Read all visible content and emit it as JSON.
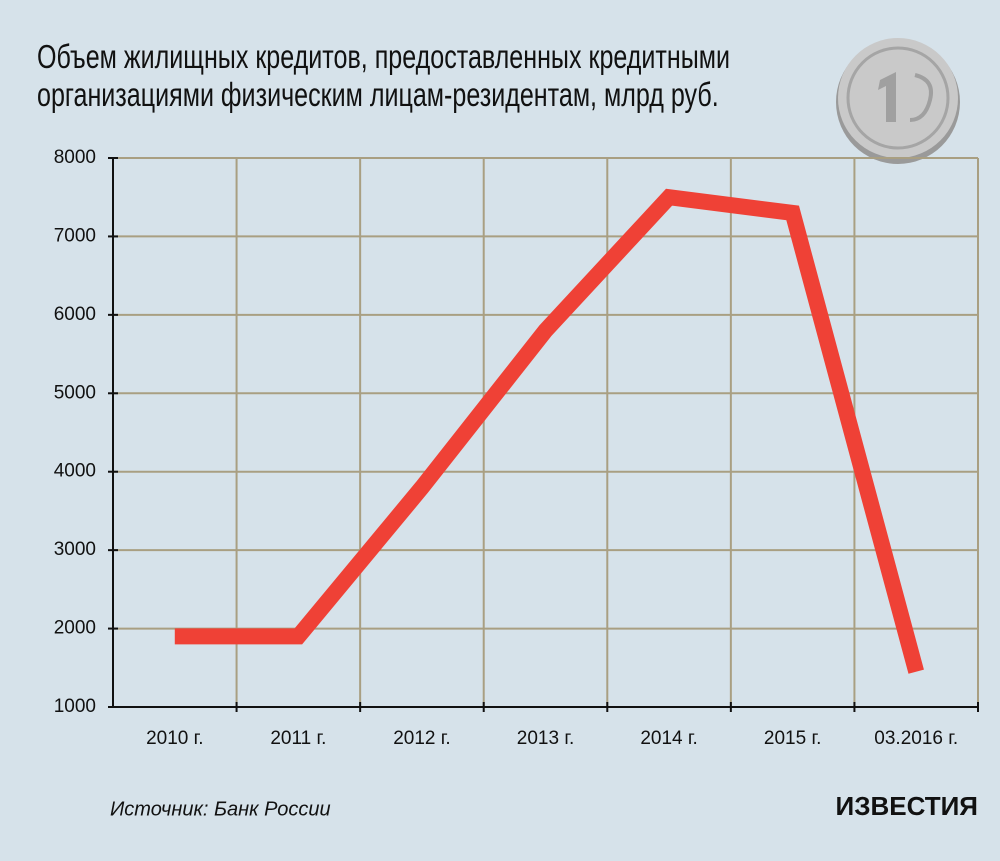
{
  "chart_data": {
    "type": "line",
    "title": "Объем жилищных кредитов, предоставленных кредитными организациями физическим лицам-резидентам, млрд руб.",
    "categories": [
      "2010 г.",
      "2011 г.",
      "2012 г.",
      "2013 г.",
      "2014 г.",
      "2015 г.",
      "03.2016 г."
    ],
    "values": [
      1900,
      1900,
      3800,
      5800,
      7500,
      7300,
      1450
    ],
    "color": "#ef4136",
    "ylim": [
      1000,
      8000
    ],
    "yticks": [
      1000,
      2000,
      3000,
      4000,
      5000,
      6000,
      7000,
      8000
    ],
    "grid": true,
    "source": "Источник: Банк России",
    "logo": "ИЗВЕСТИЯ"
  }
}
